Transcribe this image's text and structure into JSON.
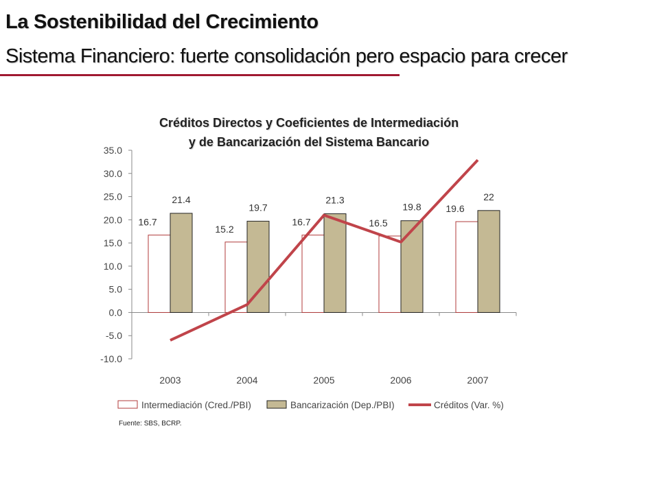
{
  "slide": {
    "title": "La Sostenibilidad del Crecimiento",
    "subtitle": "Sistema Financiero: fuerte consolidación pero espacio para crecer"
  },
  "chart_data": {
    "type": "bar",
    "title_line1": "Créditos Directos y Coeficientes de Intermediación",
    "title_line2": "y de Bancarización del Sistema Bancario",
    "categories": [
      "2003",
      "2004",
      "2005",
      "2006",
      "2007"
    ],
    "series": [
      {
        "name": "Intermediación (Cred./PBI)",
        "type": "bar",
        "values": [
          16.7,
          15.2,
          16.7,
          16.5,
          19.6
        ],
        "labels": [
          "16.7",
          "15.2",
          "16.7",
          "16.5",
          "19.6"
        ]
      },
      {
        "name": "Bancarización (Dep./PBI)",
        "type": "bar",
        "values": [
          21.4,
          19.7,
          21.3,
          19.8,
          22.0
        ],
        "labels": [
          "21.4",
          "19.7",
          "21.3",
          "19.8",
          "22"
        ]
      },
      {
        "name": "Créditos (Var. %)",
        "type": "line",
        "values": [
          -6.0,
          1.7,
          21.0,
          15.2,
          32.9
        ]
      }
    ],
    "ylim": [
      -10,
      35
    ],
    "yticks": [
      "-10.0",
      "-5.0",
      "0.0",
      "5.0",
      "10.0",
      "15.0",
      "20.0",
      "25.0",
      "30.0",
      "35.0"
    ],
    "legend_position": "bottom",
    "grid": false,
    "colors": {
      "intermediacion_fill": "#ffffff",
      "intermediacion_edge": "#b03a3a",
      "bancarizacion_fill": "#c4b994",
      "bancarizacion_edge": "#222222",
      "creditos_line": "#c0444a"
    },
    "source": "Fuente: SBS, BCRP."
  }
}
